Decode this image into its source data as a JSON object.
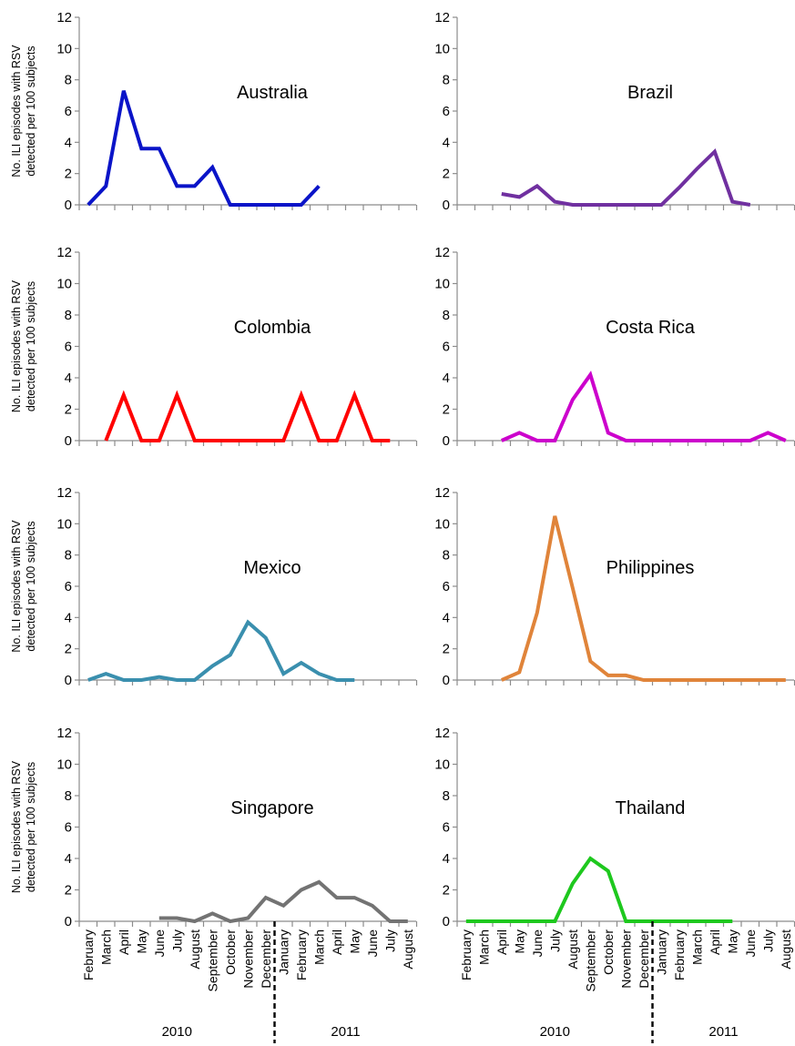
{
  "chart_data": [
    {
      "type": "line",
      "title": "Australia",
      "ylabel": "No. ILI episodes with RSV detected per 100 subjects",
      "ylim": [
        0,
        12
      ],
      "yticks": [
        "0",
        "2",
        "4",
        "6",
        "8",
        "10",
        "12"
      ],
      "x_start_month": 0,
      "color": "#0a14c8",
      "series": [
        {
          "values": [
            0,
            1.2,
            7.3,
            3.6,
            3.6,
            1.2,
            1.2,
            2.4,
            0,
            0,
            0,
            0,
            0,
            1.2
          ]
        }
      ]
    },
    {
      "type": "line",
      "title": "Brazil",
      "ylabel": "",
      "ylim": [
        0,
        12
      ],
      "yticks": [
        "0",
        "2",
        "4",
        "6",
        "8",
        "10",
        "12"
      ],
      "x_start_month": 2,
      "color": "#7030a0",
      "series": [
        {
          "values": [
            0.7,
            0.5,
            1.2,
            0.2,
            0,
            0,
            0,
            0,
            0,
            0,
            1.1,
            2.3,
            3.4,
            0.2,
            0
          ]
        }
      ]
    },
    {
      "type": "line",
      "title": "Colombia",
      "ylabel": "No. ILI episodes with RSV detected per 100 subjects",
      "ylim": [
        0,
        12
      ],
      "yticks": [
        "0",
        "2",
        "4",
        "6",
        "8",
        "10",
        "12"
      ],
      "x_start_month": 1,
      "color": "#ff0000",
      "series": [
        {
          "values": [
            0,
            2.9,
            0,
            0,
            2.9,
            0,
            0,
            0,
            0,
            0,
            0,
            2.9,
            0,
            0,
            2.9,
            0,
            0
          ]
        }
      ]
    },
    {
      "type": "line",
      "title": "Costa Rica",
      "ylabel": "",
      "ylim": [
        0,
        12
      ],
      "yticks": [
        "0",
        "2",
        "4",
        "6",
        "8",
        "10",
        "12"
      ],
      "x_start_month": 2,
      "color": "#cc00cc",
      "series": [
        {
          "values": [
            0,
            0.5,
            0,
            0,
            2.6,
            4.2,
            0.5,
            0,
            0,
            0,
            0,
            0,
            0,
            0,
            0,
            0.5,
            0
          ]
        }
      ]
    },
    {
      "type": "line",
      "title": "Mexico",
      "ylabel": "No. ILI episodes with RSV detected per 100 subjects",
      "ylim": [
        0,
        12
      ],
      "yticks": [
        "0",
        "2",
        "4",
        "6",
        "8",
        "10",
        "12"
      ],
      "x_start_month": 0,
      "color": "#3a8fae",
      "series": [
        {
          "values": [
            0,
            0.4,
            0,
            0,
            0.2,
            0,
            0,
            0.9,
            1.6,
            3.7,
            2.7,
            0.4,
            1.1,
            0.4,
            0,
            0
          ]
        }
      ]
    },
    {
      "type": "line",
      "title": "Philippines",
      "ylabel": "",
      "ylim": [
        0,
        12
      ],
      "yticks": [
        "0",
        "2",
        "4",
        "6",
        "8",
        "10",
        "12"
      ],
      "x_start_month": 2,
      "color": "#e0843a",
      "series": [
        {
          "values": [
            0,
            0.5,
            4.3,
            10.5,
            5.9,
            1.2,
            0.3,
            0.3,
            0,
            0,
            0,
            0,
            0,
            0,
            0,
            0,
            0
          ]
        }
      ]
    },
    {
      "type": "line",
      "title": "Singapore",
      "ylabel": "No. ILI episodes with RSV detected per 100 subjects",
      "ylim": [
        0,
        12
      ],
      "yticks": [
        "0",
        "2",
        "4",
        "6",
        "8",
        "10",
        "12"
      ],
      "x_start_month": 4,
      "color": "#737373",
      "series": [
        {
          "values": [
            0.2,
            0.2,
            0,
            0.5,
            0,
            0.2,
            1.5,
            1.0,
            2.0,
            2.5,
            1.5,
            1.5,
            1.0,
            0,
            0
          ]
        }
      ]
    },
    {
      "type": "line",
      "title": "Thailand",
      "ylabel": "",
      "ylim": [
        0,
        12
      ],
      "yticks": [
        "0",
        "2",
        "4",
        "6",
        "8",
        "10",
        "12"
      ],
      "x_start_month": 0,
      "color": "#1ec81e",
      "series": [
        {
          "values": [
            0,
            0,
            0,
            0,
            0,
            0,
            2.4,
            4.0,
            3.2,
            0,
            0,
            0,
            0,
            0,
            0,
            0
          ]
        }
      ]
    }
  ],
  "x_axis": {
    "months": [
      "February",
      "March",
      "April",
      "May",
      "June",
      "July",
      "August",
      "September",
      "October",
      "November",
      "December",
      "January",
      "February",
      "March",
      "April",
      "May",
      "June",
      "July",
      "August"
    ],
    "years": [
      "2010",
      "2011"
    ]
  }
}
